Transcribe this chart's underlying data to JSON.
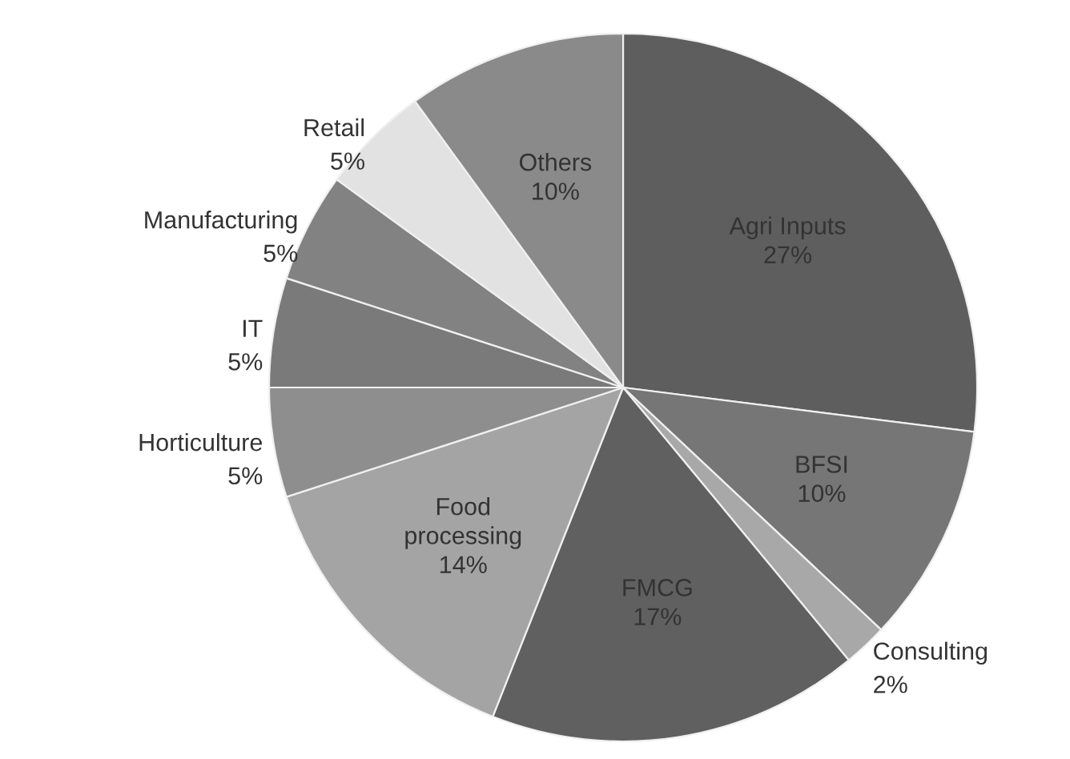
{
  "chart_data": {
    "type": "pie",
    "categories": [
      "Agri Inputs",
      "BFSI",
      "Consulting",
      "FMCG",
      "Food processing",
      "Horticulture",
      "IT",
      "Manufacturing",
      "Retail",
      "Others"
    ],
    "values": [
      27,
      10,
      2,
      17,
      14,
      5,
      5,
      5,
      5,
      10
    ],
    "value_labels": [
      "27%",
      "10%",
      "2%",
      "17%",
      "14%",
      "5%",
      "5%",
      "5%",
      "5%",
      "10%"
    ],
    "colors": [
      "#5e5e5e",
      "#767676",
      "#a8a8a8",
      "#606060",
      "#a4a4a4",
      "#8e8e8e",
      "#7a7a7a",
      "#828282",
      "#e2e2e2",
      "#8a8a8a"
    ],
    "legend": false
  }
}
